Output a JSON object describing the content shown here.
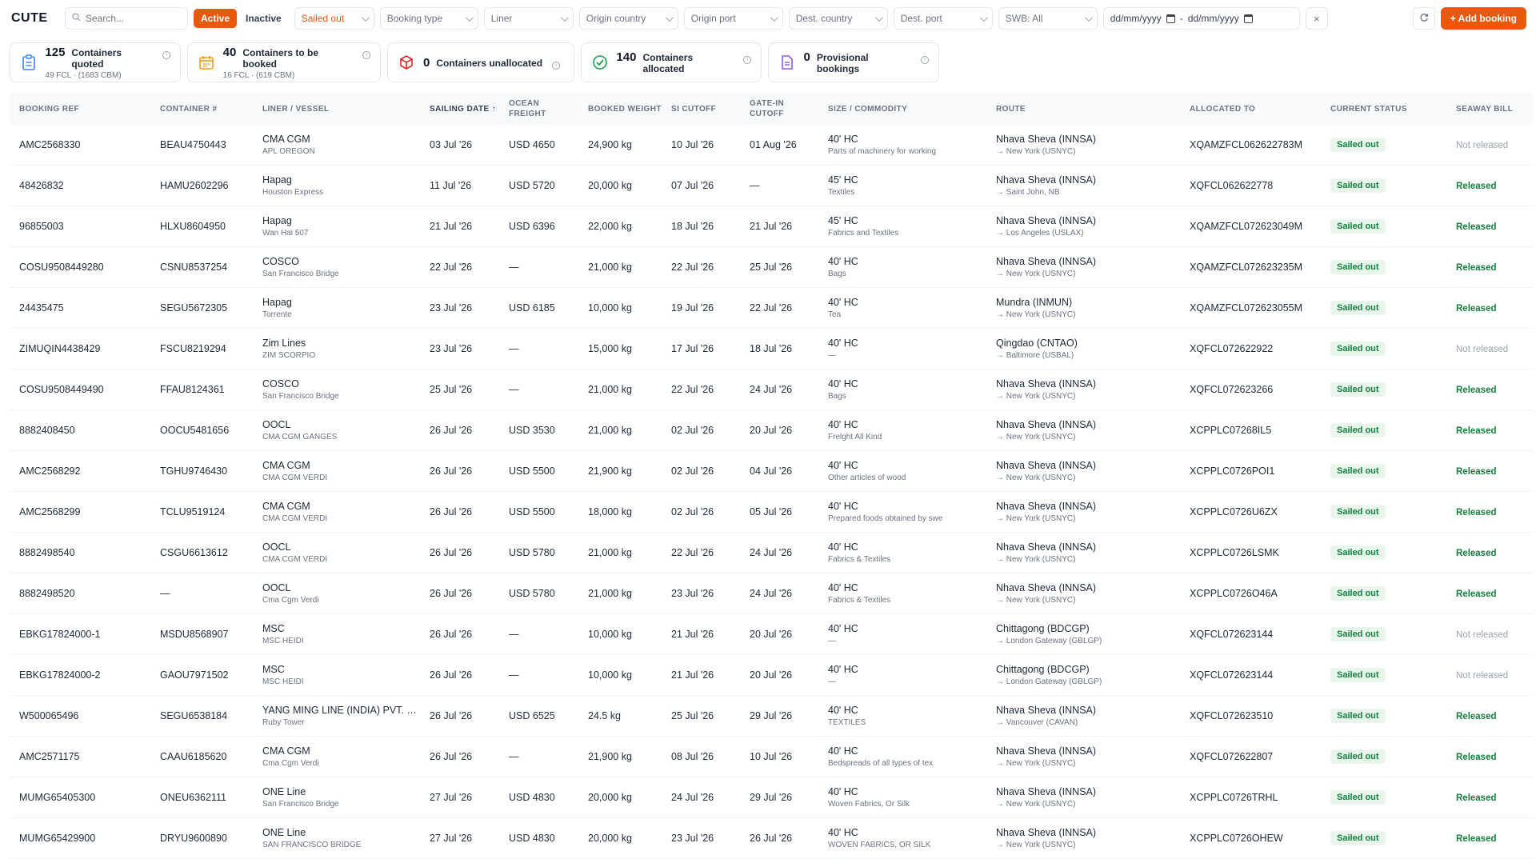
{
  "app": {
    "logo": "CUTE"
  },
  "toolbar": {
    "search_placeholder": "Search...",
    "status_tabs": [
      "Active",
      "Inactive"
    ],
    "filters": {
      "status": "Sailed out",
      "booking_type": "Booking type",
      "liner": "Liner",
      "origin_country": "Origin country",
      "origin_port": "Origin port",
      "dest_country": "Dest. country",
      "dest_port": "Dest. port",
      "swb": "SWB: All"
    },
    "date_from": "dd/mm/yyyy",
    "date_sep": "-",
    "date_to": "dd/mm/yyyy",
    "clear": "×",
    "add_booking": "+ Add booking"
  },
  "stats": [
    {
      "num": "125",
      "label": "Containers quoted",
      "sub": "49 FCL · (1683 CBM)"
    },
    {
      "num": "40",
      "label": "Containers to be booked",
      "sub": "16 FCL · (619 CBM)"
    },
    {
      "num": "0",
      "label": "Containers unallocated",
      "sub": ""
    },
    {
      "num": "140",
      "label": "Containers allocated",
      "sub": ""
    },
    {
      "num": "0",
      "label": "Provisional bookings",
      "sub": ""
    }
  ],
  "table": {
    "columns": [
      "Booking ref",
      "Container #",
      "Liner / Vessel",
      "Sailing date ↑",
      "Ocean freight",
      "Booked weight",
      "SI cutoff",
      "Gate-in cutoff",
      "Size / Commodity",
      "Route",
      "Allocated to",
      "Current status",
      "Seaway bill"
    ],
    "rows": [
      {
        "ref": "AMC2568330",
        "container": "BEAU4750443",
        "liner": "CMA CGM",
        "vessel": "APL OREGON",
        "sailing": "03 Jul '26",
        "freight": "USD 4650",
        "weight": "24,900 kg",
        "si": "10 Jul '26",
        "gate": "01 Aug '26",
        "size": "40' HC",
        "commodity": "Parts of machinery for working",
        "from": "Nhava Sheva (INNSA)",
        "to": "→ New York (USNYC)",
        "allocated": "XQAMZFCL062622783M",
        "status": "Sailed out",
        "swb": "Not released"
      },
      {
        "ref": "48426832",
        "container": "HAMU2602296",
        "liner": "Hapag",
        "vessel": "Houston Express",
        "sailing": "11 Jul '26",
        "freight": "USD 5720",
        "weight": "20,000 kg",
        "si": "07 Jul '26",
        "gate": "—",
        "size": "45' HC",
        "commodity": "Textiles",
        "from": "Nhava Sheva (INNSA)",
        "to": "→ Saint John, NB",
        "allocated": "XQFCL062622778",
        "status": "Sailed out",
        "swb": "Released"
      },
      {
        "ref": "96855003",
        "container": "HLXU8604950",
        "liner": "Hapag",
        "vessel": "Wan Hai 507",
        "sailing": "21 Jul '26",
        "freight": "USD 6396",
        "weight": "22,000 kg",
        "si": "18 Jul '26",
        "gate": "21 Jul '26",
        "size": "45' HC",
        "commodity": "Fabrics and Textiles",
        "from": "Nhava Sheva (INNSA)",
        "to": "→ Los Angeles (USLAX)",
        "allocated": "XQAMZFCL072623049M",
        "status": "Sailed out",
        "swb": "Released"
      },
      {
        "ref": "COSU9508449280",
        "container": "CSNU8537254",
        "liner": "COSCO",
        "vessel": "San Francisco Bridge",
        "sailing": "22 Jul '26",
        "freight": "—",
        "weight": "21,000 kg",
        "si": "22 Jul '26",
        "gate": "25 Jul '26",
        "size": "40' HC",
        "commodity": "Bags",
        "from": "Nhava Sheva (INNSA)",
        "to": "→ New York (USNYC)",
        "allocated": "XQAMZFCL072623235M",
        "status": "Sailed out",
        "swb": "Released"
      },
      {
        "ref": "24435475",
        "container": "SEGU5672305",
        "liner": "Hapag",
        "vessel": "Torrente",
        "sailing": "23 Jul '26",
        "freight": "USD 6185",
        "weight": "10,000 kg",
        "si": "19 Jul '26",
        "gate": "22 Jul '26",
        "size": "40' HC",
        "commodity": "Tea",
        "from": "Mundra (INMUN)",
        "to": "→ New York (USNYC)",
        "allocated": "XQAMZFCL072623055M",
        "status": "Sailed out",
        "swb": "Released"
      },
      {
        "ref": "ZIMUQIN4438429",
        "container": "FSCU8219294",
        "liner": "Zim Lines",
        "vessel": "ZIM SCORPIO",
        "sailing": "23 Jul '26",
        "freight": "—",
        "weight": "15,000 kg",
        "si": "17 Jul '26",
        "gate": "18 Jul '26",
        "size": "40' HC",
        "commodity": "—",
        "from": "Qingdao (CNTAO)",
        "to": "→ Baltimore (USBAL)",
        "allocated": "XQFCL072622922",
        "status": "Sailed out",
        "swb": "Not released"
      },
      {
        "ref": "COSU9508449490",
        "container": "FFAU8124361",
        "liner": "COSCO",
        "vessel": "San Francisco Bridge",
        "sailing": "25 Jul '26",
        "freight": "—",
        "weight": "21,000 kg",
        "si": "22 Jul '26",
        "gate": "24 Jul '26",
        "size": "40' HC",
        "commodity": "Bags",
        "from": "Nhava Sheva (INNSA)",
        "to": "→ New York (USNYC)",
        "allocated": "XQFCL072623266",
        "status": "Sailed out",
        "swb": "Released"
      },
      {
        "ref": "8882408450",
        "container": "OOCU5481656",
        "liner": "OOCL",
        "vessel": "CMA CGM GANGES",
        "sailing": "26 Jul '26",
        "freight": "USD 3530",
        "weight": "21,000 kg",
        "si": "02 Jul '26",
        "gate": "20 Jul '26",
        "size": "40' HC",
        "commodity": "Frelght All Kind",
        "from": "Nhava Sheva (INNSA)",
        "to": "→ New York (USNYC)",
        "allocated": "XCPPLC07268IL5",
        "status": "Sailed out",
        "swb": "Released"
      },
      {
        "ref": "AMC2568292",
        "container": "TGHU9746430",
        "liner": "CMA CGM",
        "vessel": "CMA CGM VERDI",
        "sailing": "26 Jul '26",
        "freight": "USD 5500",
        "weight": "21,900 kg",
        "si": "02 Jul '26",
        "gate": "04 Jul '26",
        "size": "40' HC",
        "commodity": "Other articles of wood",
        "from": "Nhava Sheva (INNSA)",
        "to": "→ New York (USNYC)",
        "allocated": "XCPPLC0726POI1",
        "status": "Sailed out",
        "swb": "Released"
      },
      {
        "ref": "AMC2568299",
        "container": "TCLU9519124",
        "liner": "CMA CGM",
        "vessel": "CMA CGM VERDI",
        "sailing": "26 Jul '26",
        "freight": "USD 5500",
        "weight": "18,000 kg",
        "si": "02 Jul '26",
        "gate": "05 Jul '26",
        "size": "40' HC",
        "commodity": "Prepared foods obtained by swe",
        "from": "Nhava Sheva (INNSA)",
        "to": "→ New York (USNYC)",
        "allocated": "XCPPLC0726U6ZX",
        "status": "Sailed out",
        "swb": "Released"
      },
      {
        "ref": "8882498540",
        "container": "CSGU6613612",
        "liner": "OOCL",
        "vessel": "CMA CGM VERDI",
        "sailing": "26 Jul '26",
        "freight": "USD 5780",
        "weight": "21,000 kg",
        "si": "22 Jul '26",
        "gate": "24 Jul '26",
        "size": "40' HC",
        "commodity": "Fabrics & Textiles",
        "from": "Nhava Sheva (INNSA)",
        "to": "→ New York (USNYC)",
        "allocated": "XCPPLC0726LSMK",
        "status": "Sailed out",
        "swb": "Released"
      },
      {
        "ref": "8882498520",
        "container": "—",
        "liner": "OOCL",
        "vessel": "Cma Cgm Verdi",
        "sailing": "26 Jul '26",
        "freight": "USD 5780",
        "weight": "21,000 kg",
        "si": "23 Jul '26",
        "gate": "24 Jul '26",
        "size": "40' HC",
        "commodity": "Fabrics & Textiles",
        "from": "Nhava Sheva (INNSA)",
        "to": "→ New York (USNYC)",
        "allocated": "XCPPLC0726O46A",
        "status": "Sailed out",
        "swb": "Released"
      },
      {
        "ref": "EBKG17824000-1",
        "container": "MSDU8568907",
        "liner": "MSC",
        "vessel": "MSC HEIDI",
        "sailing": "26 Jul '26",
        "freight": "—",
        "weight": "10,000 kg",
        "si": "21 Jul '26",
        "gate": "20 Jul '26",
        "size": "40' HC",
        "commodity": "—",
        "from": "Chittagong (BDCGP)",
        "to": "→ London Gateway (GBLGP)",
        "allocated": "XQFCL072623144",
        "status": "Sailed out",
        "swb": "Not released"
      },
      {
        "ref": "EBKG17824000-2",
        "container": "GAOU7971502",
        "liner": "MSC",
        "vessel": "MSC HEIDI",
        "sailing": "26 Jul '26",
        "freight": "—",
        "weight": "10,000 kg",
        "si": "21 Jul '26",
        "gate": "20 Jul '26",
        "size": "40' HC",
        "commodity": "—",
        "from": "Chittagong (BDCGP)",
        "to": "→ London Gateway (GBLGP)",
        "allocated": "XQFCL072623144",
        "status": "Sailed out",
        "swb": "Not released"
      },
      {
        "ref": "W500065496",
        "container": "SEGU6538184",
        "liner": "YANG MING LINE (INDIA) PVT. L...",
        "vessel": "Ruby Tower",
        "sailing": "26 Jul '26",
        "freight": "USD 6525",
        "weight": "24.5 kg",
        "si": "25 Jul '26",
        "gate": "29 Jul '26",
        "size": "40' HC",
        "commodity": "TEXTILES",
        "from": "Nhava Sheva (INNSA)",
        "to": "→ Vancouver (CAVAN)",
        "allocated": "XQFCL072623510",
        "status": "Sailed out",
        "swb": "Released"
      },
      {
        "ref": "AMC2571175",
        "container": "CAAU6185620",
        "liner": "CMA CGM",
        "vessel": "Cma Cgm Verdi",
        "sailing": "26 Jul '26",
        "freight": "—",
        "weight": "21,900 kg",
        "si": "08 Jul '26",
        "gate": "10 Jul '26",
        "size": "40' HC",
        "commodity": "Bedspreads of all types of tex",
        "from": "Nhava Sheva (INNSA)",
        "to": "→ New York (USNYC)",
        "allocated": "XQFCL072622807",
        "status": "Sailed out",
        "swb": "Released"
      },
      {
        "ref": "MUMG65405300",
        "container": "ONEU6362111",
        "liner": "ONE Line",
        "vessel": "San Francisco Bridge",
        "sailing": "27 Jul '26",
        "freight": "USD 4830",
        "weight": "20,000 kg",
        "si": "24 Jul '26",
        "gate": "29 Jul '26",
        "size": "40' HC",
        "commodity": "Woven Fabrics, Or Silk",
        "from": "Nhava Sheva (INNSA)",
        "to": "→ New York (USNYC)",
        "allocated": "XCPPLC0726TRHL",
        "status": "Sailed out",
        "swb": "Released"
      },
      {
        "ref": "MUMG65429900",
        "container": "DRYU9600890",
        "liner": "ONE Line",
        "vessel": "SAN FRANCISCO BRIDGE",
        "sailing": "27 Jul '26",
        "freight": "USD 4830",
        "weight": "20,000 kg",
        "si": "23 Jul '26",
        "gate": "26 Jul '26",
        "size": "40' HC",
        "commodity": "WOVEN FABRICS, OR SILK",
        "from": "Nhava Sheva (INNSA)",
        "to": "→ New York (USNYC)",
        "allocated": "XCPPLC0726OHEW",
        "status": "Sailed out",
        "swb": "Released"
      }
    ]
  },
  "colors": {
    "accent": "#ea580c",
    "success": "#15803d",
    "success_bg": "#e8f6ec",
    "muted": "#9ca3af"
  }
}
